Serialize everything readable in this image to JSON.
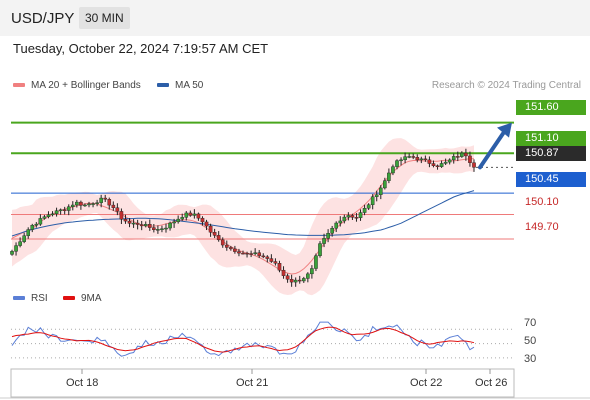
{
  "header": {
    "symbol": "USD/JPY",
    "timeframe": "30 MIN"
  },
  "timestamp": "Tuesday, October 22, 2024 7:19:57 AM CET",
  "legend": {
    "bollinger": {
      "label": "MA 20 + Bollinger Bands",
      "color": "#f08080"
    },
    "ma50": {
      "label": "MA 50",
      "color": "#2c5ea8"
    }
  },
  "credit": "Research © 2024 Trading Central",
  "rsi_legend": {
    "rsi": {
      "label": "RSI",
      "color": "#5b7fd6"
    },
    "ma9": {
      "label": "9MA",
      "color": "#e01010"
    }
  },
  "levels": [
    {
      "value": 151.6,
      "label": "151.60",
      "style": "green",
      "line": "#4aa61e"
    },
    {
      "value": 151.1,
      "label": "151.10",
      "style": "green",
      "line": "#4aa61e"
    },
    {
      "value": 150.87,
      "label": "150.87",
      "style": "dark",
      "line": "#555555"
    },
    {
      "value": 150.45,
      "label": "150.45",
      "style": "blue",
      "line": "#1d5fcf"
    },
    {
      "value": 150.1,
      "label": "150.10",
      "style": "red",
      "line": "#ef7a7a"
    },
    {
      "value": 149.7,
      "label": "149.70",
      "style": "red",
      "line": "#ef7a7a"
    }
  ],
  "dates": [
    "Oct 18",
    "Oct 21",
    "Oct 22",
    "Oct 26"
  ],
  "rsi_levels": [
    "70",
    "50",
    "30"
  ],
  "chart_data": {
    "type": "line",
    "title": "USD/JPY",
    "interval": "30 MIN",
    "x_ticks": [
      "Oct 18",
      "Oct 21",
      "Oct 22",
      "Oct 26"
    ],
    "ylim": [
      148.95,
      152.05
    ],
    "last_price": 150.87,
    "projection": {
      "from": 150.87,
      "to": 151.6,
      "color": "#2c5ea8"
    },
    "series": [
      {
        "name": "MA 20 + Bollinger Bands",
        "close": [
          149.5,
          149.7,
          149.9,
          150.0,
          150.1,
          150.15,
          150.2,
          150.3,
          150.25,
          150.3,
          150.35,
          150.25,
          150.05,
          149.95,
          149.95,
          149.9,
          149.85,
          149.9,
          150.0,
          150.1,
          150.1,
          150.0,
          149.8,
          149.65,
          149.55,
          149.5,
          149.45,
          149.45,
          149.4,
          149.3,
          149.1,
          149.0,
          149.05,
          149.15,
          149.6,
          149.8,
          150.0,
          150.1,
          150.05,
          150.2,
          150.4,
          150.6,
          150.9,
          151.0,
          151.05,
          151.0,
          150.95,
          150.9,
          150.95,
          151.05,
          151.1,
          150.87
        ]
      },
      {
        "name": "MA 50",
        "values": [
          149.75,
          149.85,
          149.92,
          149.97,
          150.0,
          150.02,
          150.03,
          150.04,
          150.03,
          150.0,
          149.96,
          149.92,
          149.87,
          149.83,
          149.8,
          149.77,
          149.76,
          149.76,
          149.77,
          149.8,
          149.85,
          149.95,
          150.1,
          150.25,
          150.4,
          150.49
        ]
      },
      {
        "name": "RSI",
        "ylim": [
          0,
          100
        ]
      },
      {
        "name": "9MA",
        "ylim": [
          0,
          100
        ]
      }
    ]
  }
}
